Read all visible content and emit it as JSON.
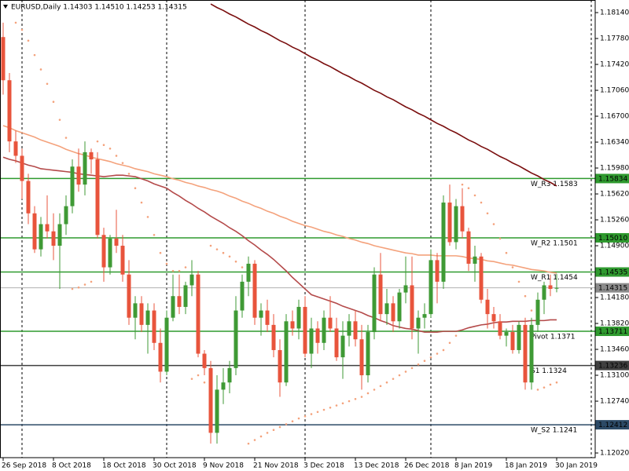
{
  "chart_data": {
    "type": "candlestick",
    "title": "EURUSD,Daily  1.14303 1.14510 1.14253 1.14315",
    "categories": [
      "26 Sep 2018",
      null,
      null,
      null,
      null,
      null,
      null,
      null,
      "8 Oct 2018",
      null,
      null,
      null,
      null,
      null,
      null,
      null,
      "18 Oct 2018",
      null,
      null,
      null,
      null,
      null,
      null,
      null,
      "30 Oct 2018",
      null,
      null,
      null,
      null,
      null,
      null,
      null,
      "9 Nov 2018",
      null,
      null,
      null,
      null,
      null,
      null,
      null,
      "21 Nov 2018",
      null,
      null,
      null,
      null,
      null,
      null,
      null,
      "3 Dec 2018",
      null,
      null,
      null,
      null,
      null,
      null,
      null,
      "13 Dec 2018",
      null,
      null,
      null,
      null,
      null,
      null,
      null,
      "26 Dec 2018",
      null,
      null,
      null,
      null,
      null,
      null,
      null,
      "8 Jan 2019",
      null,
      null,
      null,
      null,
      null,
      null,
      null,
      "18 Jan 2019",
      null,
      null,
      null,
      null,
      null,
      null,
      null,
      "30 Jan 2019"
    ],
    "open": [
      1.178,
      1.172,
      1.1635,
      1.1615,
      1.158,
      1.1535,
      1.1485,
      1.152,
      1.151,
      1.149,
      1.152,
      1.1545,
      1.16,
      1.1575,
      1.162,
      1.161,
      1.1505,
      1.146,
      1.15,
      1.149,
      1.145,
      1.139,
      1.141,
      1.138,
      1.14,
      1.1355,
      1.1315,
      1.139,
      1.142,
      1.1405,
      1.1435,
      1.145,
      1.134,
      1.132,
      1.123,
      1.129,
      1.13,
      1.132,
      1.14,
      1.144,
      1.1465,
      1.139,
      1.14,
      1.138,
      1.1345,
      1.13,
      1.1385,
      1.1375,
      1.1405,
      1.134,
      1.1375,
      1.1355,
      1.139,
      1.1375,
      1.1335,
      1.1365,
      1.1385,
      1.136,
      1.131,
      1.137,
      1.145,
      1.1395,
      1.141,
      1.1385,
      1.1425,
      1.1435,
      1.1375,
      1.139,
      1.1395,
      1.147,
      1.144,
      1.155,
      1.1495,
      1.1545,
      1.151,
      1.1465,
      1.1475,
      1.1415,
      1.1395,
      1.1385,
      1.1365,
      1.137,
      1.1345,
      1.138,
      1.13,
      1.138,
      1.1415,
      1.1435,
      1.14303
    ],
    "high": [
      1.18,
      1.173,
      1.165,
      1.1625,
      1.159,
      1.1545,
      1.153,
      1.156,
      1.1535,
      1.1535,
      1.156,
      1.161,
      1.1625,
      1.1635,
      1.1625,
      1.162,
      1.1515,
      1.1505,
      1.154,
      1.1505,
      1.147,
      1.142,
      1.142,
      1.141,
      1.141,
      1.1375,
      1.14,
      1.145,
      1.145,
      1.144,
      1.147,
      1.1455,
      1.1345,
      1.133,
      1.131,
      1.132,
      1.133,
      1.142,
      1.145,
      1.1475,
      1.147,
      1.141,
      1.1415,
      1.1395,
      1.136,
      1.1395,
      1.14,
      1.1415,
      1.142,
      1.139,
      1.1385,
      1.14,
      1.142,
      1.139,
      1.1385,
      1.1395,
      1.14,
      1.138,
      1.138,
      1.146,
      1.148,
      1.143,
      1.142,
      1.143,
      1.1475,
      1.1475,
      1.14,
      1.141,
      1.1485,
      1.148,
      1.156,
      1.1575,
      1.1555,
      1.157,
      1.1515,
      1.149,
      1.148,
      1.143,
      1.1405,
      1.1395,
      1.1375,
      1.138,
      1.1385,
      1.139,
      1.139,
      1.1425,
      1.144,
      1.145,
      1.1451
    ],
    "low": [
      1.17,
      1.162,
      1.1605,
      1.1555,
      1.152,
      1.148,
      1.1475,
      1.15,
      1.147,
      1.143,
      1.1505,
      1.1535,
      1.1565,
      1.156,
      1.159,
      1.15,
      1.144,
      1.145,
      1.148,
      1.144,
      1.138,
      1.136,
      1.137,
      1.134,
      1.1345,
      1.13,
      1.131,
      1.1385,
      1.1395,
      1.1395,
      1.142,
      1.1335,
      1.131,
      1.1215,
      1.1215,
      1.127,
      1.1285,
      1.131,
      1.139,
      1.142,
      1.138,
      1.1365,
      1.137,
      1.1335,
      1.128,
      1.1295,
      1.1365,
      1.136,
      1.1335,
      1.132,
      1.134,
      1.1345,
      1.137,
      1.133,
      1.1305,
      1.135,
      1.135,
      1.129,
      1.13,
      1.136,
      1.1385,
      1.138,
      1.137,
      1.1375,
      1.141,
      1.136,
      1.134,
      1.1375,
      1.139,
      1.141,
      1.143,
      1.149,
      1.1485,
      1.15,
      1.1455,
      1.144,
      1.141,
      1.1375,
      1.1375,
      1.136,
      1.135,
      1.134,
      1.134,
      1.129,
      1.129,
      1.137,
      1.1395,
      1.142,
      1.14253
    ],
    "close": [
      1.172,
      1.1635,
      1.1615,
      1.158,
      1.1535,
      1.1485,
      1.152,
      1.151,
      1.149,
      1.152,
      1.1545,
      1.16,
      1.1575,
      1.162,
      1.161,
      1.1505,
      1.146,
      1.15,
      1.149,
      1.145,
      1.139,
      1.141,
      1.138,
      1.14,
      1.1355,
      1.1315,
      1.139,
      1.142,
      1.1405,
      1.1435,
      1.145,
      1.134,
      1.132,
      1.123,
      1.129,
      1.13,
      1.132,
      1.14,
      1.144,
      1.1465,
      1.139,
      1.14,
      1.138,
      1.1345,
      1.13,
      1.1385,
      1.1375,
      1.1405,
      1.134,
      1.1375,
      1.1355,
      1.139,
      1.1375,
      1.1335,
      1.1365,
      1.1385,
      1.136,
      1.131,
      1.137,
      1.145,
      1.1395,
      1.141,
      1.1385,
      1.1425,
      1.1435,
      1.1375,
      1.139,
      1.1395,
      1.147,
      1.144,
      1.155,
      1.1495,
      1.1545,
      1.151,
      1.1465,
      1.1475,
      1.1415,
      1.1395,
      1.1385,
      1.1365,
      1.137,
      1.1345,
      1.138,
      1.13,
      1.138,
      1.1415,
      1.1435,
      1.143,
      1.14315
    ],
    "up_color": "#3f9a35",
    "down_color": "#e8543c",
    "lines": [
      {
        "color": "#7a0e0e",
        "values": [
          null,
          null,
          null,
          null,
          null,
          null,
          null,
          null,
          null,
          null,
          null,
          null,
          null,
          null,
          null,
          null,
          null,
          null,
          null,
          null,
          null,
          null,
          null,
          null,
          null,
          null,
          null,
          null,
          null,
          null,
          null,
          null,
          null,
          1.1826,
          1.1821,
          1.1817,
          1.1812,
          1.1808,
          1.1803,
          1.1798,
          1.1794,
          1.1789,
          1.1785,
          1.178,
          1.1775,
          1.1771,
          1.1766,
          1.1762,
          1.1757,
          1.1752,
          1.1748,
          1.1743,
          1.1739,
          1.1734,
          1.1729,
          1.1725,
          1.172,
          1.1716,
          1.1711,
          1.1706,
          1.1702,
          1.1697,
          1.1693,
          1.1688,
          1.1683,
          1.1679,
          1.1674,
          1.167,
          1.1665,
          1.166,
          1.1656,
          1.1651,
          1.1647,
          1.1642,
          1.1637,
          1.1633,
          1.1628,
          1.1624,
          1.1619,
          1.1614,
          1.161,
          1.1605,
          1.1601,
          1.1596,
          1.1591,
          1.1587,
          1.1582,
          1.1578,
          1.1573
        ]
      },
      {
        "color": "#f4a27c",
        "values": [
          1.1657,
          1.1654,
          1.165,
          1.1647,
          1.1644,
          1.1641,
          1.1637,
          1.1634,
          1.1631,
          1.1628,
          1.1624,
          1.1621,
          1.1618,
          1.1616,
          1.1613,
          1.1611,
          1.1609,
          1.1607,
          1.1604,
          1.1602,
          1.16,
          1.1597,
          1.1595,
          1.1593,
          1.159,
          1.1588,
          1.1586,
          1.1583,
          1.1581,
          1.1578,
          1.1576,
          1.1573,
          1.1571,
          1.1568,
          1.1566,
          1.1563,
          1.1559,
          1.1556,
          1.1552,
          1.1549,
          1.1545,
          1.1542,
          1.1538,
          1.1535,
          1.1531,
          1.1528,
          1.1524,
          1.1521,
          1.1518,
          1.1516,
          1.1513,
          1.151,
          1.1508,
          1.1505,
          1.1503,
          1.15,
          1.1498,
          1.1495,
          1.1493,
          1.149,
          1.1488,
          1.1486,
          1.1484,
          1.1482,
          1.148,
          1.1479,
          1.1477,
          1.1477,
          1.1477,
          1.1476,
          1.1476,
          1.1476,
          1.1476,
          1.1475,
          1.1473,
          1.1472,
          1.1471,
          1.1469,
          1.1468,
          1.1466,
          1.1464,
          1.1463,
          1.1461,
          1.1459,
          1.1457,
          1.1456,
          1.1455,
          1.1453,
          1.1452
        ]
      },
      {
        "color": "#b44a4a",
        "values": [
          1.1613,
          1.161,
          1.1608,
          1.1605,
          1.1602,
          1.16,
          1.1597,
          1.1596,
          1.1595,
          1.1594,
          1.1593,
          1.1592,
          1.159,
          1.1589,
          1.1588,
          1.1587,
          1.1586,
          1.1587,
          1.1588,
          1.1588,
          1.1587,
          1.1586,
          1.1583,
          1.158,
          1.1576,
          1.1573,
          1.157,
          1.1564,
          1.1559,
          1.1553,
          1.1548,
          1.1542,
          1.1537,
          1.1531,
          1.1526,
          1.1521,
          1.1515,
          1.151,
          1.1504,
          1.1497,
          1.1491,
          1.1484,
          1.1478,
          1.1471,
          1.1463,
          1.1455,
          1.1446,
          1.1438,
          1.143,
          1.1422,
          1.1419,
          1.1416,
          1.1413,
          1.141,
          1.1406,
          1.1403,
          1.14,
          1.1397,
          1.1393,
          1.139,
          1.1386,
          1.1383,
          1.1379,
          1.1377,
          1.1375,
          1.1374,
          1.1372,
          1.137,
          1.137,
          1.137,
          1.1371,
          1.1371,
          1.1371,
          1.1373,
          1.1376,
          1.1378,
          1.138,
          1.1381,
          1.1383,
          1.1384,
          1.1384,
          1.1385,
          1.1385,
          1.1385,
          1.1386,
          1.1386,
          1.1386,
          1.1387,
          1.1387
        ]
      }
    ],
    "dots": {
      "color": "#f4a27c",
      "values": [
        null,
        null,
        1.18,
        1.179,
        1.1775,
        1.1755,
        1.1735,
        1.1715,
        1.169,
        1.1665,
        1.164,
        1.143,
        1.1432,
        1.1436,
        1.144,
        1.1635,
        1.163,
        1.1625,
        1.1615,
        1.1605,
        1.159,
        1.157,
        1.155,
        1.153,
        1.1505,
        1.148,
        1.1465,
        1.1455,
        1.1455,
        1.146,
        1.1305,
        1.131,
        1.13,
        1.149,
        1.1485,
        1.148,
        1.1475,
        1.1468,
        1.146,
        1.1215,
        1.122,
        1.1225,
        1.123,
        1.1234,
        1.1238,
        1.1242,
        1.1246,
        1.125,
        1.1253,
        1.1256,
        1.1259,
        1.1262,
        1.1265,
        1.1268,
        1.1271,
        1.1274,
        1.1277,
        1.128,
        1.1285,
        1.129,
        1.1295,
        1.13,
        1.1305,
        1.131,
        1.1315,
        1.132,
        1.1325,
        1.133,
        1.1335,
        1.134,
        1.1345,
        1.1355,
        1.1365,
        1.1575,
        1.157,
        1.156,
        1.155,
        1.1535,
        1.152,
        1.15,
        1.148,
        1.146,
        1.144,
        1.142,
        1.14,
        1.129,
        1.1293,
        1.1297,
        1.13
      ]
    },
    "levels": [
      {
        "name": "W_R3 1.1583",
        "value": 1.15834,
        "label": "1.15834",
        "color": "#2f9a2f"
      },
      {
        "name": "W_R2 1.1501",
        "value": 1.1501,
        "label": "1.15010",
        "color": "#2f9a2f"
      },
      {
        "name": "W_R1 1.1454",
        "value": 1.14535,
        "label": "1.14535",
        "color": "#2f9a2f"
      },
      {
        "name": "Pivot 1.1371",
        "value": 1.13711,
        "label": "1.13711",
        "color": "#2f9a2f"
      },
      {
        "name": "S1 1.1324",
        "value": 1.13236,
        "label": "1.13236",
        "color": "#404040"
      },
      {
        "name": "W_S2 1.1241",
        "value": 1.12412,
        "label": "1.12412",
        "color": "#2c4a66"
      }
    ],
    "current": {
      "value": 1.14315,
      "label": "1.14315",
      "color": "#8c8c8c"
    },
    "ylim": [
      1.11955,
      1.18315
    ],
    "yticks": [
      {
        "value": 1.1814,
        "label": "1.18140"
      },
      {
        "value": 1.1778,
        "label": "1.17780"
      },
      {
        "value": 1.1742,
        "label": "1.17420"
      },
      {
        "value": 1.1706,
        "label": "1.17060"
      },
      {
        "value": 1.167,
        "label": "1.16700"
      },
      {
        "value": 1.1634,
        "label": "1.16340"
      },
      {
        "value": 1.1598,
        "label": "1.15980"
      },
      {
        "value": 1.1562,
        "label": "1.15620"
      },
      {
        "value": 1.1526,
        "label": "1.15260"
      },
      {
        "value": 1.149,
        "label": "1.14900"
      },
      {
        "value": 1.1418,
        "label": "1.14180"
      },
      {
        "value": 1.1382,
        "label": "1.13820"
      },
      {
        "value": 1.1346,
        "label": "1.13460"
      },
      {
        "value": 1.131,
        "label": "1.13100"
      },
      {
        "value": 1.1274,
        "label": "1.12740"
      },
      {
        "value": 1.1202,
        "label": "1.12020"
      }
    ]
  }
}
